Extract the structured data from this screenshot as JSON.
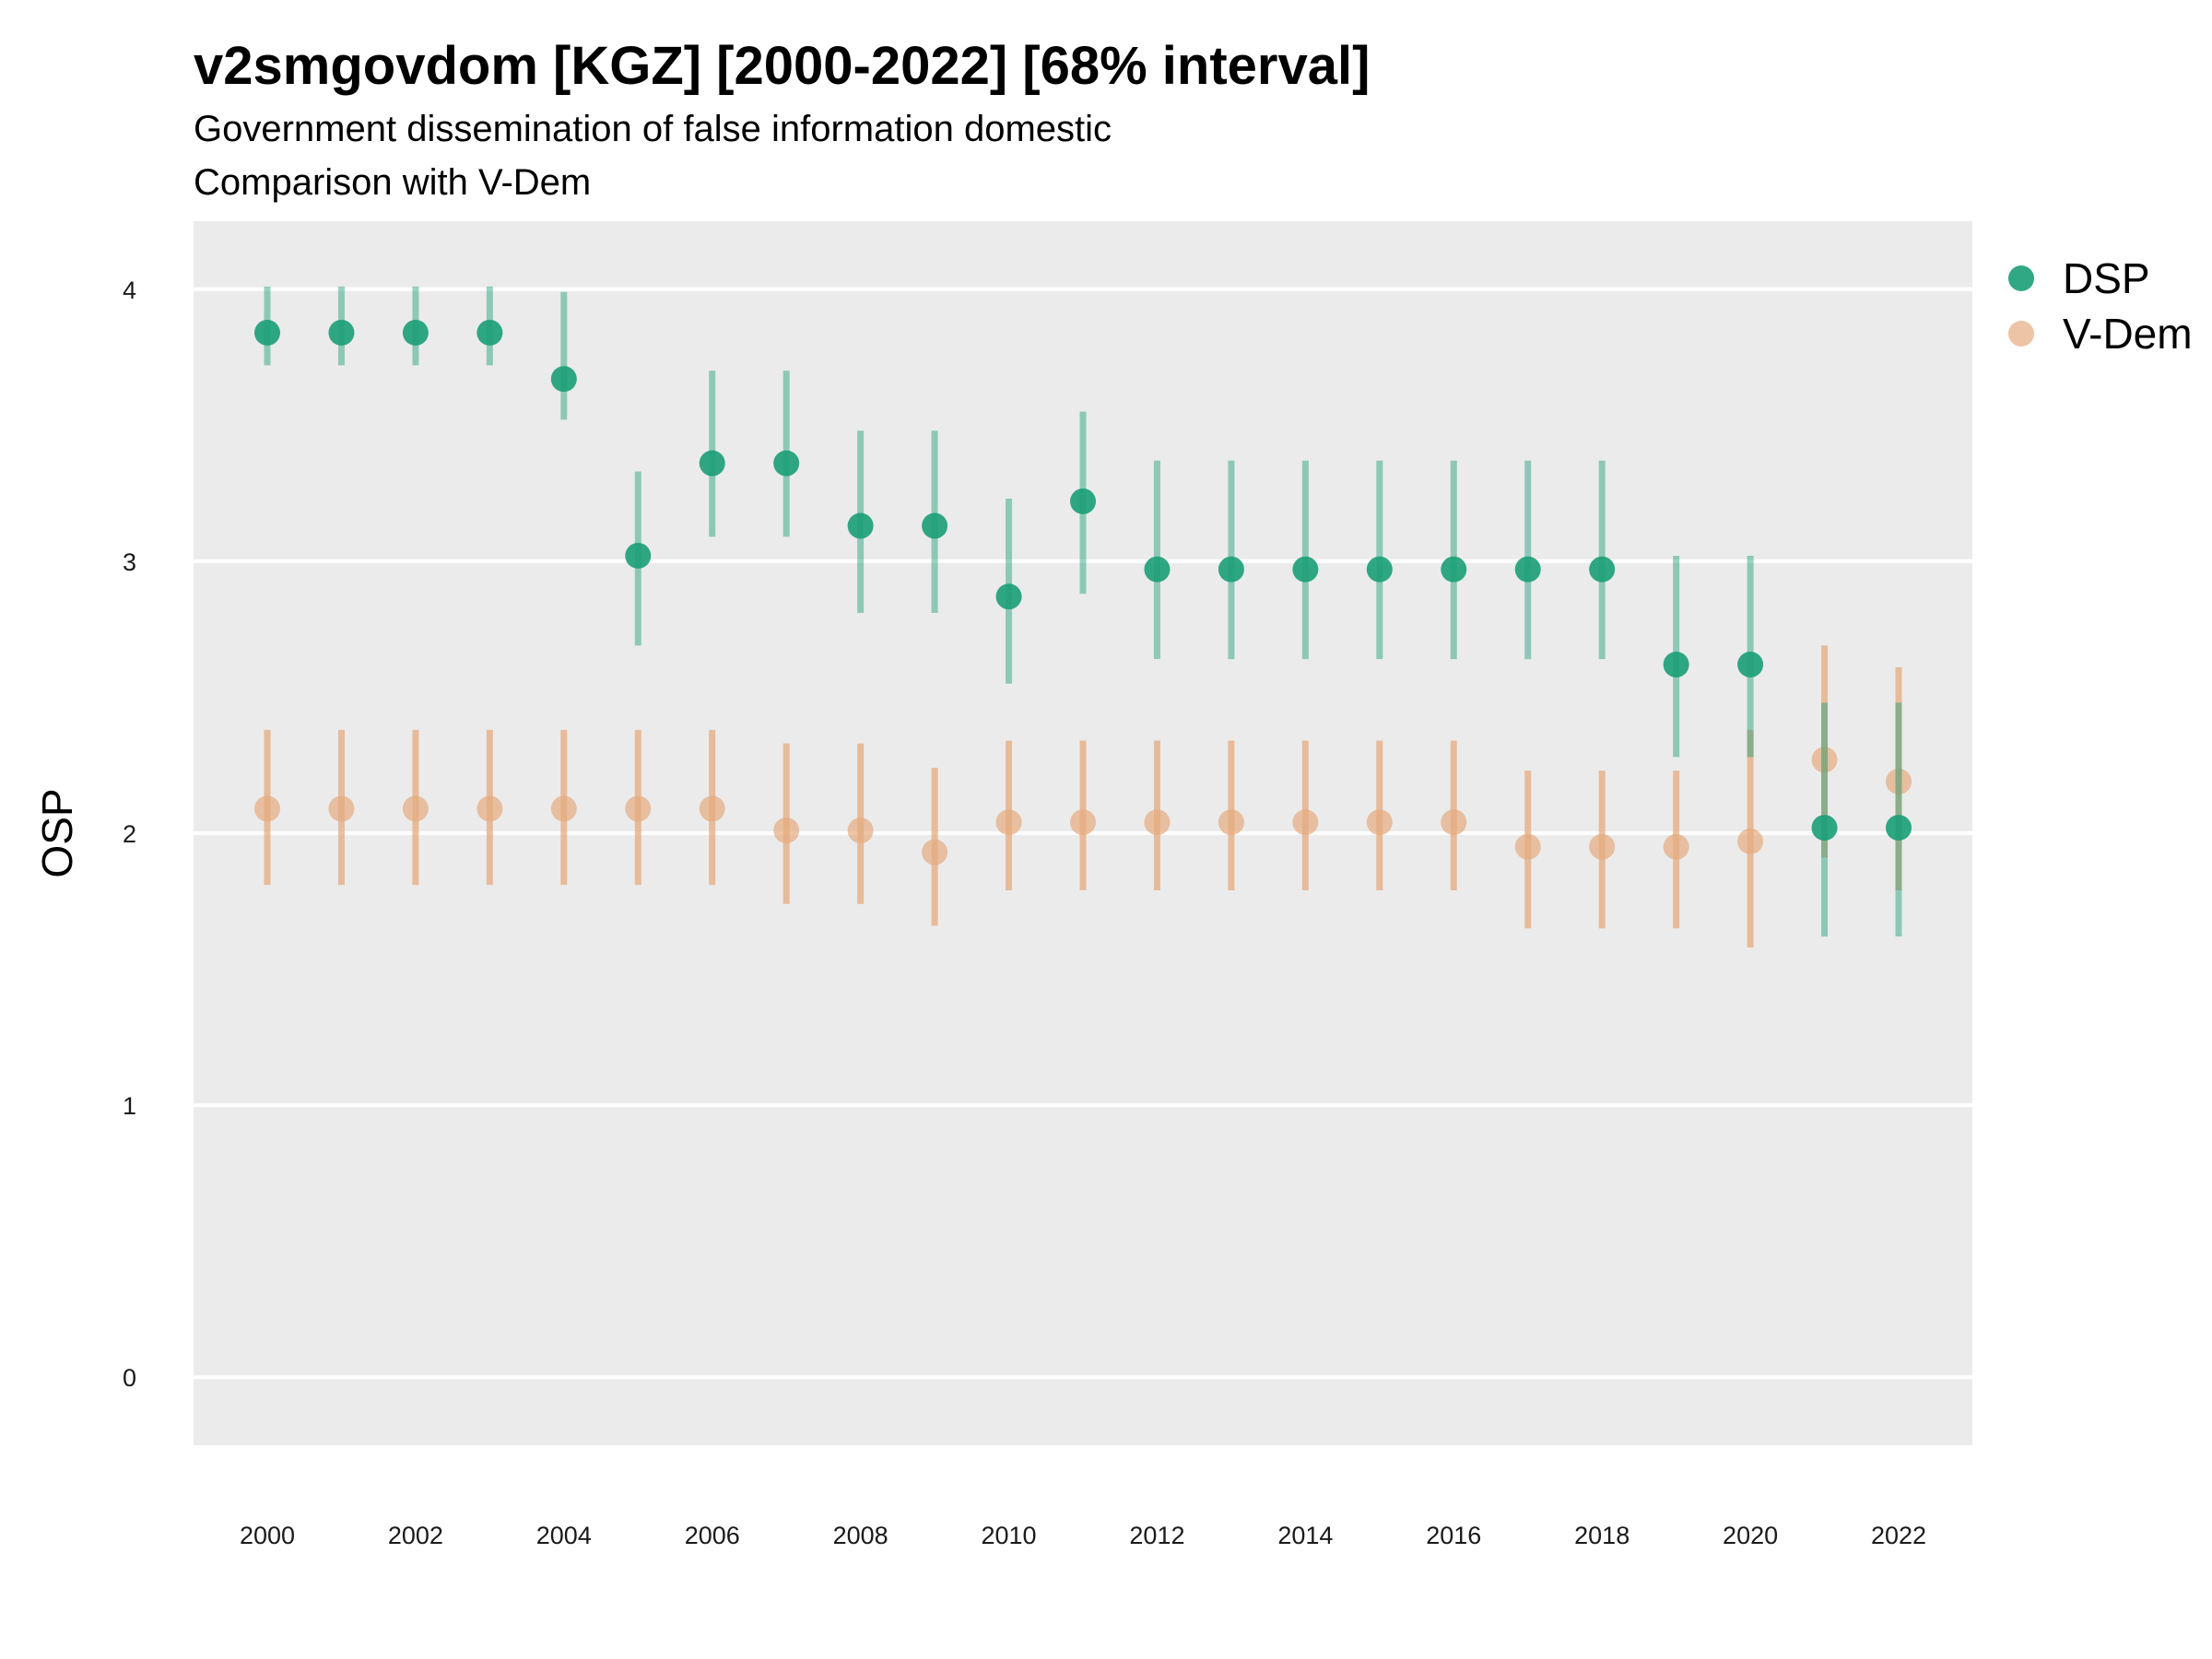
{
  "chart_data": {
    "type": "scatter",
    "title": "v2smgovdom [KGZ] [2000-2022] [68% interval]",
    "subtitle": [
      "Government dissemination of false information domestic",
      "Comparison with V-Dem"
    ],
    "xlabel": "",
    "ylabel": "OSP",
    "x": [
      2000,
      2001,
      2002,
      2003,
      2004,
      2005,
      2006,
      2007,
      2008,
      2009,
      2010,
      2011,
      2012,
      2013,
      2014,
      2015,
      2016,
      2017,
      2018,
      2019,
      2020,
      2021,
      2022
    ],
    "x_ticks": [
      "2000",
      "2002",
      "2004",
      "2006",
      "2008",
      "2010",
      "2012",
      "2014",
      "2016",
      "2018",
      "2020",
      "2022"
    ],
    "y_ticks": [
      "0",
      "1",
      "2",
      "3",
      "4"
    ],
    "ylim": [
      -0.25,
      4.25
    ],
    "xlim": [
      1999,
      2023
    ],
    "grid": "horizontal major",
    "legend_position": "right",
    "series": [
      {
        "name": "DSP",
        "color": "#1b9e77",
        "values": [
          3.84,
          3.84,
          3.84,
          3.84,
          3.67,
          3.02,
          3.36,
          3.36,
          3.13,
          3.13,
          2.87,
          3.22,
          2.97,
          2.97,
          2.97,
          2.97,
          2.97,
          2.97,
          2.97,
          2.62,
          2.62,
          2.02,
          2.02
        ],
        "lower": [
          3.72,
          3.72,
          3.72,
          3.72,
          3.52,
          2.69,
          3.09,
          3.09,
          2.81,
          2.81,
          2.55,
          2.88,
          2.64,
          2.64,
          2.64,
          2.64,
          2.64,
          2.64,
          2.64,
          2.28,
          2.28,
          1.62,
          1.62
        ],
        "upper": [
          4.01,
          4.01,
          4.01,
          4.01,
          3.99,
          3.33,
          3.7,
          3.7,
          3.48,
          3.48,
          3.23,
          3.55,
          3.37,
          3.37,
          3.37,
          3.37,
          3.37,
          3.37,
          3.37,
          3.02,
          3.02,
          2.48,
          2.48
        ]
      },
      {
        "name": "V-Dem",
        "color": "#e6ab7f",
        "values": [
          2.09,
          2.09,
          2.09,
          2.09,
          2.09,
          2.09,
          2.09,
          2.01,
          2.01,
          1.93,
          2.04,
          2.04,
          2.04,
          2.04,
          2.04,
          2.04,
          2.04,
          1.95,
          1.95,
          1.95,
          1.97,
          2.27,
          2.19
        ],
        "lower": [
          1.81,
          1.81,
          1.81,
          1.81,
          1.81,
          1.81,
          1.81,
          1.74,
          1.74,
          1.66,
          1.79,
          1.79,
          1.79,
          1.79,
          1.79,
          1.79,
          1.79,
          1.65,
          1.65,
          1.65,
          1.58,
          1.91,
          1.79
        ],
        "upper": [
          2.38,
          2.38,
          2.38,
          2.38,
          2.38,
          2.38,
          2.38,
          2.33,
          2.33,
          2.24,
          2.34,
          2.34,
          2.34,
          2.34,
          2.34,
          2.34,
          2.34,
          2.23,
          2.23,
          2.23,
          2.38,
          2.69,
          2.61
        ]
      }
    ]
  }
}
